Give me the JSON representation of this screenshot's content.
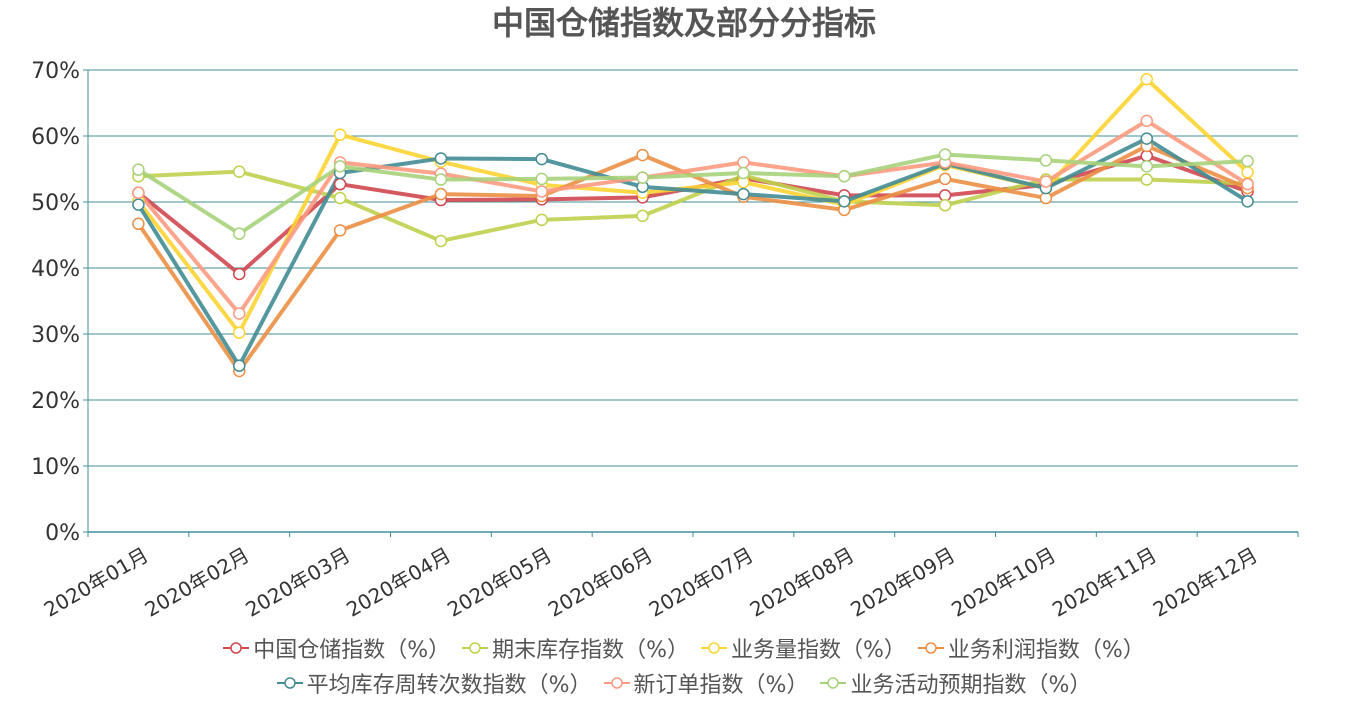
{
  "chart_data": {
    "type": "line",
    "title": "中国仓储指数及部分分指标",
    "categories": [
      "2020年01月",
      "2020年02月",
      "2020年03月",
      "2020年04月",
      "2020年05月",
      "2020年06月",
      "2020年07月",
      "2020年08月",
      "2020年09月",
      "2020年10月",
      "2020年11月",
      "2020年12月"
    ],
    "ylim": [
      0,
      70
    ],
    "yticks": [
      "0%",
      "10%",
      "20%",
      "30%",
      "40%",
      "50%",
      "60%",
      "70%"
    ],
    "grid": true,
    "legend_position": "bottom",
    "series": [
      {
        "name": "中国仓储指数（%）",
        "color": "#d0474f",
        "values": [
          51.4,
          39.1,
          52.7,
          50.3,
          50.4,
          50.7,
          53.6,
          51.0,
          51.0,
          52.6,
          57.0,
          51.6
        ]
      },
      {
        "name": "期末库存指数（%）",
        "color": "#bfd04e",
        "values": [
          53.9,
          54.6,
          50.6,
          44.1,
          47.3,
          47.9,
          54.0,
          50.1,
          49.5,
          53.4,
          53.4,
          52.8
        ]
      },
      {
        "name": "业务量指数（%）",
        "color": "#fcd433",
        "values": [
          50.1,
          30.2,
          60.2,
          56.1,
          52.6,
          51.4,
          53.0,
          49.6,
          55.6,
          52.1,
          68.6,
          54.5
        ]
      },
      {
        "name": "业务利润指数（%）",
        "color": "#ec8f45",
        "values": [
          46.7,
          24.4,
          45.7,
          51.2,
          50.9,
          57.1,
          50.8,
          48.8,
          53.5,
          50.6,
          58.5,
          52.1
        ]
      },
      {
        "name": "平均库存周转次数指数（%）",
        "color": "#428c93",
        "values": [
          49.6,
          25.2,
          54.4,
          56.6,
          56.5,
          52.3,
          51.2,
          50.1,
          55.8,
          52.1,
          59.6,
          50.1
        ]
      },
      {
        "name": "新订单指数（%）",
        "color": "#fc9a7f",
        "values": [
          51.4,
          33.1,
          56.0,
          54.3,
          51.6,
          53.7,
          56.0,
          53.9,
          56.0,
          53.1,
          62.3,
          52.7
        ]
      },
      {
        "name": "业务活动预期指数（%）",
        "color": "#a7d27b",
        "values": [
          54.9,
          45.2,
          55.4,
          53.4,
          53.5,
          53.7,
          54.4,
          53.9,
          57.2,
          56.3,
          55.4,
          56.2
        ]
      }
    ]
  }
}
